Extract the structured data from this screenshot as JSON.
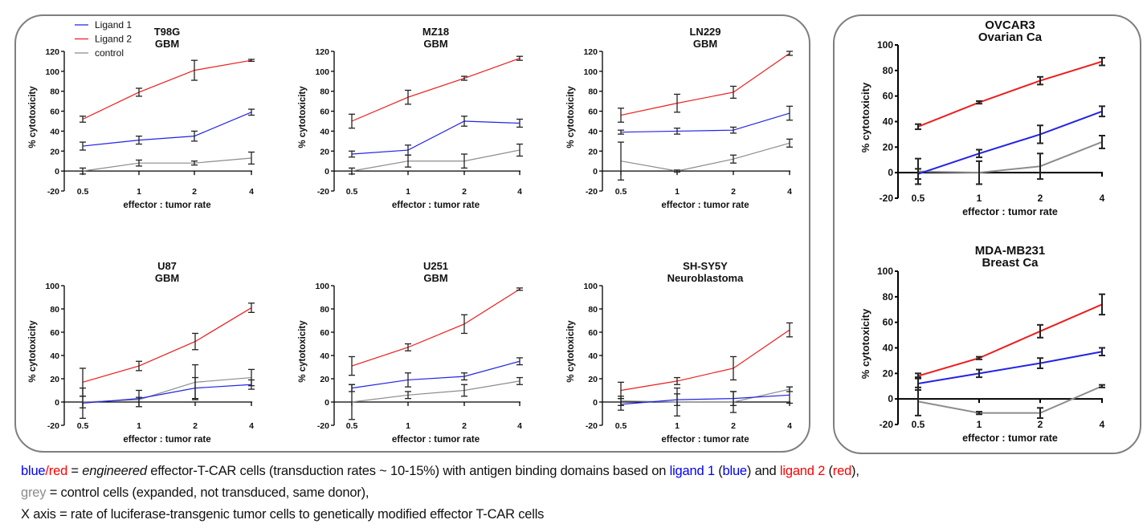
{
  "colors": {
    "ligand1": "#2323e6",
    "ligand2": "#ee1c1c",
    "control": "#8c8c8c",
    "errorbar": "#333333",
    "frame": "#7f7f7f",
    "caption_blue": "#0000ff",
    "caption_red": "#ff0000",
    "caption_grey": "#8c8c8c"
  },
  "legend": [
    {
      "label": "Ligand 1",
      "series": "ligand1"
    },
    {
      "label": "Ligand 2",
      "series": "ligand2"
    },
    {
      "label": "control",
      "series": "control"
    }
  ],
  "chart_data": [
    {
      "type": "line",
      "id": "t98g",
      "title": [
        "T98G",
        "GBM"
      ],
      "xlabel": "effector : tumor rate",
      "ylabel": "% cytotoxicity",
      "categories": [
        "0.5",
        "1",
        "2",
        "4"
      ],
      "ylim": [
        -20,
        120
      ],
      "yticks": [
        -20,
        0,
        20,
        40,
        60,
        80,
        100,
        120
      ],
      "legend": "top-left",
      "grid": false,
      "series": [
        {
          "name": "Ligand 1",
          "key": "ligand1",
          "values": [
            25,
            31,
            35,
            59
          ],
          "err": [
            4,
            4,
            5,
            3
          ]
        },
        {
          "name": "Ligand 2",
          "key": "ligand2",
          "values": [
            52,
            79,
            101,
            111
          ],
          "err": [
            3,
            4,
            10,
            1
          ]
        },
        {
          "name": "control",
          "key": "control",
          "values": [
            0,
            8,
            8,
            13
          ],
          "err": [
            3,
            3,
            2,
            6
          ]
        }
      ]
    },
    {
      "type": "line",
      "id": "mz18",
      "title": [
        "MZ18",
        "GBM"
      ],
      "xlabel": "effector : tumor rate",
      "ylabel": "% cytotoxicity",
      "categories": [
        "0.5",
        "1",
        "2",
        "4"
      ],
      "ylim": [
        -20,
        120
      ],
      "yticks": [
        -20,
        0,
        20,
        40,
        60,
        80,
        100,
        120
      ],
      "grid": false,
      "series": [
        {
          "name": "Ligand 1",
          "key": "ligand1",
          "values": [
            17,
            21,
            50,
            48
          ],
          "err": [
            3,
            5,
            5,
            4
          ]
        },
        {
          "name": "Ligand 2",
          "key": "ligand2",
          "values": [
            50,
            74,
            93,
            113
          ],
          "err": [
            7,
            7,
            2,
            2
          ]
        },
        {
          "name": "control",
          "key": "control",
          "values": [
            0,
            10,
            10,
            21
          ],
          "err": [
            3,
            6,
            7,
            6
          ]
        }
      ]
    },
    {
      "type": "line",
      "id": "ln229",
      "title": [
        "LN229",
        "GBM"
      ],
      "xlabel": "effector : tumor rate",
      "ylabel": "% cytotoxicity",
      "categories": [
        "0.5",
        "1",
        "2",
        "4"
      ],
      "ylim": [
        -20,
        120
      ],
      "yticks": [
        -20,
        0,
        20,
        40,
        60,
        80,
        100,
        120
      ],
      "grid": false,
      "series": [
        {
          "name": "Ligand 1",
          "key": "ligand1",
          "values": [
            39,
            40,
            41,
            58
          ],
          "err": [
            2,
            3,
            3,
            7
          ]
        },
        {
          "name": "Ligand 2",
          "key": "ligand2",
          "values": [
            56,
            68,
            79,
            118
          ],
          "err": [
            7,
            9,
            6,
            2
          ]
        },
        {
          "name": "control",
          "key": "control",
          "values": [
            10,
            0,
            12,
            28
          ],
          "err": [
            19,
            1,
            4,
            4
          ]
        }
      ]
    },
    {
      "type": "line",
      "id": "u87",
      "title": [
        "U87",
        "GBM"
      ],
      "xlabel": "effector : tumor rate",
      "ylabel": "% cytotoxicity",
      "categories": [
        "0.5",
        "1",
        "2",
        "4"
      ],
      "ylim": [
        -20,
        100
      ],
      "yticks": [
        -20,
        0,
        20,
        40,
        60,
        80,
        100
      ],
      "grid": false,
      "series": [
        {
          "name": "Ligand 1",
          "key": "ligand1",
          "values": [
            -1,
            3,
            12,
            15
          ],
          "err": [
            13,
            7,
            9,
            4
          ]
        },
        {
          "name": "Ligand 2",
          "key": "ligand2",
          "values": [
            17,
            31,
            52,
            81
          ],
          "err": [
            12,
            4,
            7,
            4
          ]
        },
        {
          "name": "control",
          "key": "control",
          "values": [
            0,
            2,
            17,
            21
          ],
          "err": [
            5,
            2,
            15,
            7
          ]
        }
      ]
    },
    {
      "type": "line",
      "id": "u251",
      "title": [
        "U251",
        "GBM"
      ],
      "xlabel": "effector : tumor rate",
      "ylabel": "% cytotoxicity",
      "categories": [
        "0.5",
        "1",
        "2",
        "4"
      ],
      "ylim": [
        -20,
        100
      ],
      "yticks": [
        -20,
        0,
        20,
        40,
        60,
        80,
        100
      ],
      "grid": false,
      "series": [
        {
          "name": "Ligand 1",
          "key": "ligand1",
          "values": [
            12,
            19,
            22,
            35
          ],
          "err": [
            3,
            6,
            3,
            3
          ]
        },
        {
          "name": "Ligand 2",
          "key": "ligand2",
          "values": [
            31,
            47,
            67,
            97
          ],
          "err": [
            8,
            3,
            8,
            1
          ]
        },
        {
          "name": "control",
          "key": "control",
          "values": [
            0,
            6,
            10,
            18
          ],
          "err": [
            15,
            3,
            5,
            3
          ]
        }
      ]
    },
    {
      "type": "line",
      "id": "shsy5y",
      "title": [
        "SH-SY5Y",
        "Neuroblastoma"
      ],
      "xlabel": "effector : tumor rate",
      "ylabel": "% cytotoxicity",
      "categories": [
        "0.5",
        "1",
        "2",
        "4"
      ],
      "ylim": [
        -20,
        100
      ],
      "yticks": [
        -20,
        0,
        20,
        40,
        60,
        80,
        100
      ],
      "grid": false,
      "series": [
        {
          "name": "Ligand 1",
          "key": "ligand1",
          "values": [
            -2,
            2,
            3,
            6
          ],
          "err": [
            5,
            5,
            6,
            7
          ]
        },
        {
          "name": "Ligand 2",
          "key": "ligand2",
          "values": [
            10,
            18,
            29,
            62
          ],
          "err": [
            7,
            3,
            10,
            6
          ]
        },
        {
          "name": "control",
          "key": "control",
          "values": [
            1,
            0,
            0,
            11
          ],
          "err": [
            4,
            12,
            9,
            2
          ]
        }
      ]
    },
    {
      "type": "line",
      "id": "ovcar3",
      "title": [
        "OVCAR3",
        "Ovarian Ca"
      ],
      "xlabel": "effector : tumor rate",
      "ylabel": "% cytotoxicity",
      "categories": [
        "0.5",
        "1",
        "2",
        "4"
      ],
      "ylim": [
        -20,
        100
      ],
      "yticks": [
        -20,
        0,
        20,
        40,
        60,
        80,
        100
      ],
      "grid": false,
      "series": [
        {
          "name": "Ligand 1",
          "key": "ligand1",
          "values": [
            -1,
            15,
            30,
            48
          ],
          "err": [
            4,
            3,
            7,
            4
          ]
        },
        {
          "name": "Ligand 2",
          "key": "ligand2",
          "values": [
            36,
            55,
            72,
            87
          ],
          "err": [
            2,
            1,
            3,
            3
          ]
        },
        {
          "name": "control",
          "key": "control",
          "values": [
            1,
            0,
            5,
            24
          ],
          "err": [
            10,
            9,
            10,
            5
          ]
        }
      ]
    },
    {
      "type": "line",
      "id": "mdamb231",
      "title": [
        "MDA-MB231",
        "Breast Ca"
      ],
      "xlabel": "effector : tumor rate",
      "ylabel": "% cytotoxicity",
      "categories": [
        "0.5",
        "1",
        "2",
        "4"
      ],
      "ylim": [
        -20,
        100
      ],
      "yticks": [
        -20,
        0,
        20,
        40,
        60,
        80,
        100
      ],
      "grid": false,
      "series": [
        {
          "name": "Ligand 1",
          "key": "ligand1",
          "values": [
            12,
            20,
            28,
            37
          ],
          "err": [
            5,
            3,
            4,
            3
          ]
        },
        {
          "name": "Ligand 2",
          "key": "ligand2",
          "values": [
            18,
            32,
            53,
            74
          ],
          "err": [
            2,
            1,
            5,
            8
          ]
        },
        {
          "name": "control",
          "key": "control",
          "values": [
            -2,
            -11,
            -11,
            10
          ],
          "err": [
            11,
            1,
            4,
            1
          ]
        }
      ]
    }
  ],
  "caption": {
    "line1": {
      "blue": "blue",
      "slash": "/",
      "red": "red",
      "eq": " = ",
      "engineered": "engineered",
      "mid": " effector-T-CAR cells (transduction rates ~ 10-15%) with antigen binding domains based on ",
      "ligand1": "ligand 1",
      "p1open": " (",
      "blue2": "blue",
      "p1close": ") and ",
      "ligand2": "ligand 2",
      "p2open": " (",
      "red2": "red",
      "p2close": "),"
    },
    "line2": {
      "grey": "grey",
      "rest": " = control cells (expanded, not transduced, same donor),"
    },
    "line3": "X axis = rate of luciferase-transgenic tumor cells to genetically modified effector T-CAR cells"
  }
}
